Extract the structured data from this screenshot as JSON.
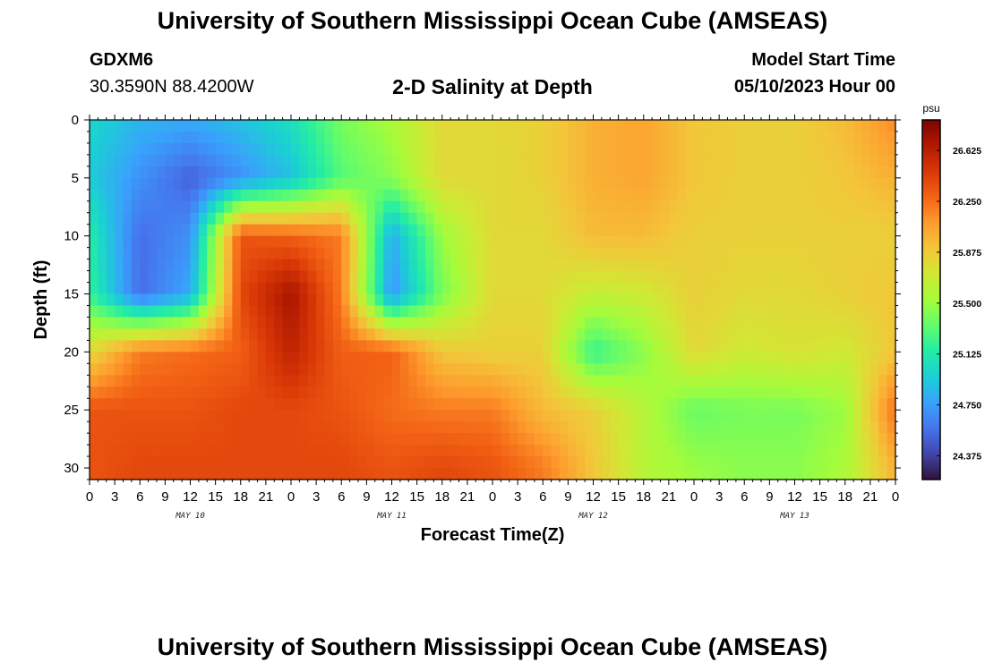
{
  "header": {
    "title": "University of Southern Mississippi Ocean Cube (AMSEAS)",
    "station": "GDXM6",
    "coords": "30.3590N  88.4200W",
    "subtitle": "2-D Salinity at Depth",
    "start_label": "Model Start Time",
    "start_value": "05/10/2023 Hour 00"
  },
  "footer": {
    "title": "University of Southern Mississippi Ocean Cube (AMSEAS)"
  },
  "chart_data": {
    "type": "heatmap",
    "title": "2-D Salinity at Depth",
    "xlabel": "Forecast Time(Z)",
    "ylabel": "Depth (ft)",
    "xlim": [
      0,
      96
    ],
    "ylim": [
      31,
      0
    ],
    "x_tick_hours": [
      0,
      3,
      6,
      9,
      12,
      15,
      18,
      21,
      24,
      27,
      30,
      33,
      36,
      39,
      42,
      45,
      48,
      51,
      54,
      57,
      60,
      63,
      66,
      69,
      72,
      75,
      78,
      81,
      84,
      87,
      90,
      93,
      96
    ],
    "x_tick_labels": [
      "0",
      "3",
      "6",
      "9",
      "12",
      "15",
      "18",
      "21",
      "0",
      "3",
      "6",
      "9",
      "12",
      "15",
      "18",
      "21",
      "0",
      "3",
      "6",
      "9",
      "12",
      "15",
      "18",
      "21",
      "0",
      "3",
      "6",
      "9",
      "12",
      "15",
      "18",
      "21",
      "0"
    ],
    "day_labels": [
      {
        "hour": 12,
        "label": "MAY 10"
      },
      {
        "hour": 36,
        "label": "MAY 11"
      },
      {
        "hour": 60,
        "label": "MAY 12"
      },
      {
        "hour": 84,
        "label": "MAY 13"
      }
    ],
    "y_ticks": [
      0,
      5,
      10,
      15,
      20,
      25,
      30
    ],
    "y_tick_labels": [
      "0",
      "5",
      "10",
      "15",
      "20",
      "25",
      "30"
    ],
    "colorbar": {
      "unit": "psu",
      "min": 24.2,
      "max": 26.85,
      "ticks": [
        24.375,
        24.75,
        25.125,
        25.5,
        25.875,
        26.25,
        26.625
      ],
      "tick_labels": [
        "24.375",
        "24.750",
        "25.125",
        "25.500",
        "25.875",
        "26.250",
        "26.625"
      ],
      "colors": [
        "#30123b",
        "#4145ab",
        "#4675ed",
        "#39a2fc",
        "#1bcfd4",
        "#24eca6",
        "#61fc6c",
        "#a4fc3b",
        "#d1e834",
        "#f3c63a",
        "#fe9b2d",
        "#f36315",
        "#d93806",
        "#b11901",
        "#7a0402"
      ]
    },
    "salinity_time_hours": [
      0,
      6,
      12,
      18,
      24,
      30,
      36,
      42,
      48,
      54,
      60,
      66,
      72,
      78,
      84,
      90,
      96
    ],
    "salinity_depth_ft": [
      0,
      5,
      10,
      15,
      20,
      25,
      30
    ],
    "salinity_psu": [
      [
        25.0,
        24.85,
        24.8,
        24.9,
        25.05,
        25.4,
        25.55,
        25.8,
        25.8,
        25.85,
        26.0,
        26.05,
        25.9,
        25.85,
        25.85,
        25.95,
        26.15
      ],
      [
        24.95,
        24.7,
        24.5,
        24.7,
        24.9,
        25.3,
        25.45,
        25.8,
        25.8,
        25.85,
        26.0,
        26.05,
        25.9,
        25.85,
        25.85,
        25.9,
        26.0
      ],
      [
        25.15,
        24.55,
        24.7,
        26.35,
        26.3,
        26.2,
        24.8,
        25.5,
        25.8,
        25.8,
        25.95,
        25.95,
        25.85,
        25.85,
        25.85,
        25.85,
        25.85
      ],
      [
        25.2,
        24.55,
        24.8,
        26.4,
        26.7,
        26.2,
        24.7,
        25.4,
        25.8,
        25.8,
        25.65,
        25.7,
        25.85,
        25.8,
        25.8,
        25.85,
        25.9
      ],
      [
        25.8,
        26.2,
        26.25,
        26.3,
        26.6,
        26.3,
        26.3,
        25.9,
        25.85,
        25.85,
        25.2,
        25.45,
        25.8,
        25.7,
        25.75,
        25.7,
        25.9
      ],
      [
        26.35,
        26.35,
        26.35,
        26.4,
        26.4,
        26.35,
        26.25,
        26.2,
        26.2,
        25.95,
        25.85,
        25.6,
        25.35,
        25.4,
        25.4,
        25.5,
        26.25
      ],
      [
        26.35,
        26.4,
        26.4,
        26.4,
        26.4,
        26.4,
        26.35,
        26.4,
        26.35,
        26.2,
        25.9,
        25.6,
        25.5,
        25.45,
        25.45,
        25.55,
        26.0
      ]
    ]
  }
}
